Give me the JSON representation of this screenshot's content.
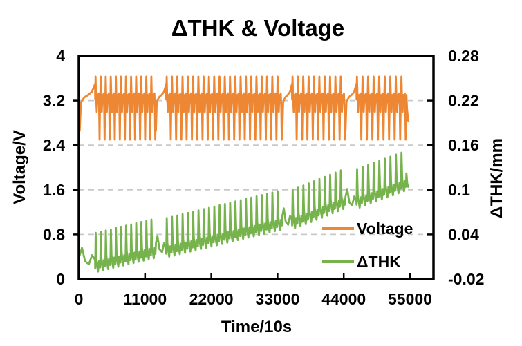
{
  "chart_data": {
    "type": "line",
    "title": "ΔTHK & Voltage",
    "grid": {
      "horizontal": true,
      "style": "dashed",
      "color": "#c9c9c9"
    },
    "x_axis": {
      "label": "Time/10s",
      "min": 0,
      "max": 58900,
      "ticks": [
        {
          "v": 0,
          "label": "0"
        },
        {
          "v": 11000,
          "label": "11000"
        },
        {
          "v": 22000,
          "label": "22000"
        },
        {
          "v": 33000,
          "label": "33000"
        },
        {
          "v": 44000,
          "label": "44000"
        },
        {
          "v": 55000,
          "label": "55000"
        }
      ]
    },
    "y_left": {
      "label": "Voltage/V",
      "min": 0,
      "max": 4,
      "ticks": [
        {
          "v": 0,
          "label": "0"
        },
        {
          "v": 0.8,
          "label": "0.8"
        },
        {
          "v": 1.6,
          "label": "1.6"
        },
        {
          "v": 2.4,
          "label": "2.4"
        },
        {
          "v": 3.2,
          "label": "3.2"
        },
        {
          "v": 4,
          "label": "4"
        }
      ]
    },
    "y_right": {
      "label": "ΔTHK/mm",
      "min": -0.02,
      "max": 0.28,
      "ticks": [
        {
          "v": -0.02,
          "label": "-0.02"
        },
        {
          "v": 0.04,
          "label": "0.04"
        },
        {
          "v": 0.1,
          "label": "0.1"
        },
        {
          "v": 0.16,
          "label": "0.16"
        },
        {
          "v": 0.22,
          "label": "0.22"
        },
        {
          "v": 0.28,
          "label": "0.28"
        }
      ]
    },
    "legend": {
      "position": "inside-bottom-right",
      "entries": [
        {
          "label": "Voltage",
          "color": "#ED8733"
        },
        {
          "label": "ΔTHK",
          "color": "#77B34D"
        }
      ]
    },
    "series": [
      {
        "name": "Voltage",
        "axis": "left",
        "color": "#ED8733",
        "stroke_width": 2.8,
        "rest_shape": [
          [
            0,
            2.66
          ],
          [
            0.08,
            3.17
          ],
          [
            0.3,
            3.26
          ],
          [
            0.55,
            3.3
          ],
          [
            0.8,
            3.36
          ],
          [
            0.95,
            3.46
          ],
          [
            1,
            3.5
          ]
        ],
        "cycle_shape": [
          [
            0.02,
            3.22
          ],
          [
            0.1,
            3.63
          ],
          [
            0.2,
            3.26
          ],
          [
            0.32,
            3.0
          ],
          [
            0.44,
            3.3
          ],
          [
            0.58,
            3.17
          ],
          [
            0.7,
            3.33
          ],
          [
            0.8,
            3.05
          ],
          [
            0.88,
            2.5
          ],
          [
            0.97,
            3.1
          ]
        ],
        "tail_shape": [
          [
            0,
            3.3
          ],
          [
            0.35,
            3.05
          ],
          [
            1,
            2.84
          ]
        ],
        "segments": [
          {
            "type": "rest",
            "t0": 150,
            "t1": 2700
          },
          {
            "type": "cycles",
            "t0": 2700,
            "t1": 12800,
            "n": 12
          },
          {
            "type": "rest",
            "t0": 12800,
            "t1": 14500
          },
          {
            "type": "cycles",
            "t0": 14500,
            "t1": 33800,
            "n": 22
          },
          {
            "type": "rest",
            "t0": 33800,
            "t1": 35400
          },
          {
            "type": "cycles",
            "t0": 35400,
            "t1": 44300,
            "n": 10
          },
          {
            "type": "rest",
            "t0": 44300,
            "t1": 46100
          },
          {
            "type": "cycles",
            "t0": 46100,
            "t1": 54400,
            "n": 9
          },
          {
            "type": "tail",
            "t0": 54400,
            "t1": 54700
          }
        ]
      },
      {
        "name": "ΔTHK",
        "axis": "right",
        "color": "#77B34D",
        "stroke_width": 2.8,
        "rest_rel": [
          [
            0,
            0.002
          ],
          [
            0.15,
            0.012
          ],
          [
            0.35,
            -0.006
          ],
          [
            0.6,
            -0.01
          ],
          [
            0.8,
            0.002
          ],
          [
            1,
            -0.004
          ]
        ],
        "cycle_rel": [
          [
            0.02,
            -0.01
          ],
          [
            0.12,
            0.038
          ],
          [
            0.24,
            0.004
          ],
          [
            0.4,
            -0.006
          ],
          [
            0.58,
            -0.014
          ],
          [
            0.76,
            0.0
          ],
          [
            0.9,
            -0.008
          ]
        ],
        "tail_rel": [
          [
            0,
            0.012
          ],
          [
            0.5,
            -0.002
          ],
          [
            1,
            -0.006
          ]
        ],
        "segments": [
          {
            "type": "rest",
            "t0": 150,
            "t1": 2700,
            "base": 0.01
          },
          {
            "type": "cycles",
            "t0": 2700,
            "t1": 12800,
            "n": 12,
            "base0": 0.004,
            "base1": 0.022
          },
          {
            "type": "rest",
            "t0": 12800,
            "t1": 14500,
            "base": 0.026
          },
          {
            "type": "cycles",
            "t0": 14500,
            "t1": 33800,
            "n": 22,
            "base0": 0.024,
            "base1": 0.06
          },
          {
            "type": "rest",
            "t0": 33800,
            "t1": 35400,
            "base": 0.063
          },
          {
            "type": "cycles",
            "t0": 35400,
            "t1": 44300,
            "n": 10,
            "base0": 0.062,
            "base1": 0.088
          },
          {
            "type": "rest",
            "t0": 44300,
            "t1": 46100,
            "base": 0.089
          },
          {
            "type": "cycles",
            "t0": 46100,
            "t1": 54400,
            "n": 9,
            "base0": 0.09,
            "base1": 0.112
          },
          {
            "type": "tail",
            "t0": 54400,
            "t1": 54700,
            "base": 0.11
          }
        ]
      }
    ]
  }
}
